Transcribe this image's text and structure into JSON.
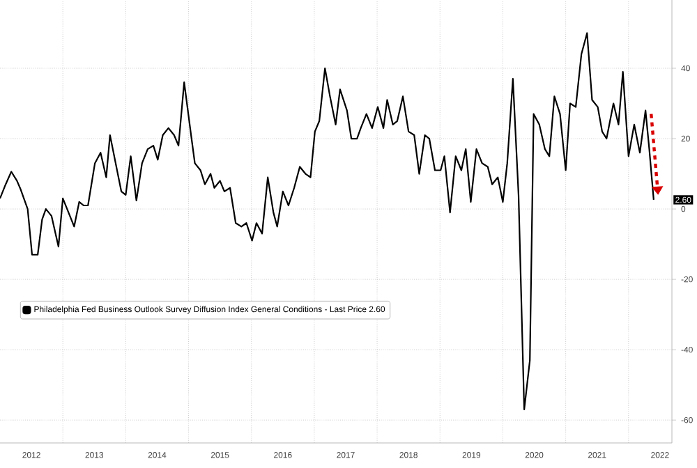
{
  "chart_data": {
    "type": "line",
    "x": [
      2012.0,
      2012.09,
      2012.18,
      2012.27,
      2012.33,
      2012.44,
      2012.51,
      2012.6,
      2012.67,
      2012.73,
      2012.82,
      2012.93,
      2013.0,
      2013.18,
      2013.26,
      2013.33,
      2013.4,
      2013.51,
      2013.6,
      2013.69,
      2013.75,
      2013.84,
      2013.93,
      2014.0,
      2014.08,
      2014.17,
      2014.26,
      2014.35,
      2014.44,
      2014.51,
      2014.59,
      2014.68,
      2014.77,
      2014.84,
      2014.93,
      2015.04,
      2015.1,
      2015.19,
      2015.26,
      2015.35,
      2015.41,
      2015.5,
      2015.57,
      2015.66,
      2015.75,
      2015.84,
      2015.92,
      2016.01,
      2016.08,
      2016.17,
      2016.26,
      2016.35,
      2016.41,
      2016.5,
      2016.59,
      2016.68,
      2016.77,
      2016.86,
      2016.94,
      2017.01,
      2017.08,
      2017.17,
      2017.25,
      2017.34,
      2017.41,
      2017.52,
      2017.59,
      2017.68,
      2017.74,
      2017.83,
      2017.92,
      2018.01,
      2018.1,
      2018.16,
      2018.25,
      2018.32,
      2018.41,
      2018.5,
      2018.59,
      2018.67,
      2018.76,
      2018.83,
      2018.92,
      2019.01,
      2019.07,
      2019.16,
      2019.25,
      2019.34,
      2019.41,
      2019.49,
      2019.58,
      2019.67,
      2019.76,
      2019.83,
      2019.92,
      2020.0,
      2020.07,
      2020.16,
      2020.25,
      2020.34,
      2020.43,
      2020.49,
      2020.58,
      2020.67,
      2020.74,
      2020.82,
      2020.91,
      2021.0,
      2021.07,
      2021.16,
      2021.25,
      2021.34,
      2021.42,
      2021.51,
      2021.58,
      2021.65,
      2021.76,
      2021.84,
      2021.91,
      2022.0,
      2022.09,
      2022.18,
      2022.27,
      2022.33,
      2022.4
    ],
    "series": [
      {
        "name": "Philadelphia Fed Business Outlook Survey Diffusion Index General Conditions - Last Price 2.60",
        "color": "#000000",
        "values": [
          3,
          7,
          10.6,
          8,
          5.5,
          0,
          -13,
          -13,
          -3,
          0,
          -2,
          -10.7,
          3,
          -5,
          2,
          1,
          1,
          13,
          16,
          9,
          21,
          13,
          5,
          4,
          15,
          2.4,
          13,
          17,
          18,
          14,
          21,
          23,
          21,
          18,
          36,
          21,
          13,
          11,
          7,
          10,
          6,
          8,
          5,
          6,
          -4,
          -5,
          -4,
          -9,
          -4,
          -7,
          9,
          -1,
          -5,
          5,
          1,
          6,
          12,
          10,
          9,
          22,
          25,
          40,
          32,
          24,
          34,
          28,
          20,
          20,
          23,
          27,
          23,
          29,
          23,
          31,
          24,
          25,
          32,
          22,
          21,
          10,
          21,
          20,
          11,
          11,
          15,
          -1,
          15,
          11,
          17,
          2,
          17,
          13,
          12,
          7,
          9,
          2,
          13,
          37,
          4,
          -57,
          -43,
          27,
          24,
          17,
          15,
          32,
          27,
          11,
          30,
          29,
          44,
          50,
          31,
          29,
          22,
          20,
          30,
          24,
          39,
          15,
          24,
          16,
          28,
          17,
          2.6
        ]
      }
    ],
    "xlim": [
      2012.0,
      2022.69
    ],
    "xticks": [
      {
        "value": 2012.5,
        "label": "2012"
      },
      {
        "value": 2013,
        "label": null
      },
      {
        "value": 2013.5,
        "label": "2013"
      },
      {
        "value": 2014,
        "label": null
      },
      {
        "value": 2014.5,
        "label": "2014"
      },
      {
        "value": 2015,
        "label": null
      },
      {
        "value": 2015.5,
        "label": "2015"
      },
      {
        "value": 2016,
        "label": null
      },
      {
        "value": 2016.5,
        "label": "2016"
      },
      {
        "value": 2017,
        "label": null
      },
      {
        "value": 2017.5,
        "label": "2017"
      },
      {
        "value": 2018,
        "label": null
      },
      {
        "value": 2018.5,
        "label": "2018"
      },
      {
        "value": 2019,
        "label": null
      },
      {
        "value": 2019.5,
        "label": "2019"
      },
      {
        "value": 2020,
        "label": null
      },
      {
        "value": 2020.5,
        "label": "2020"
      },
      {
        "value": 2021,
        "label": null
      },
      {
        "value": 2021.5,
        "label": "2021"
      },
      {
        "value": 2022,
        "label": null
      },
      {
        "value": 2022.5,
        "label": "2022"
      }
    ],
    "ylim": [
      -66.5,
      59.4
    ],
    "yticks": [
      -60,
      -40,
      -20,
      0,
      20,
      40
    ],
    "grid": true,
    "legend": "left",
    "annotations": [
      {
        "text": "2.60",
        "x": 2022.4,
        "y": 2.6
      }
    ]
  }
}
